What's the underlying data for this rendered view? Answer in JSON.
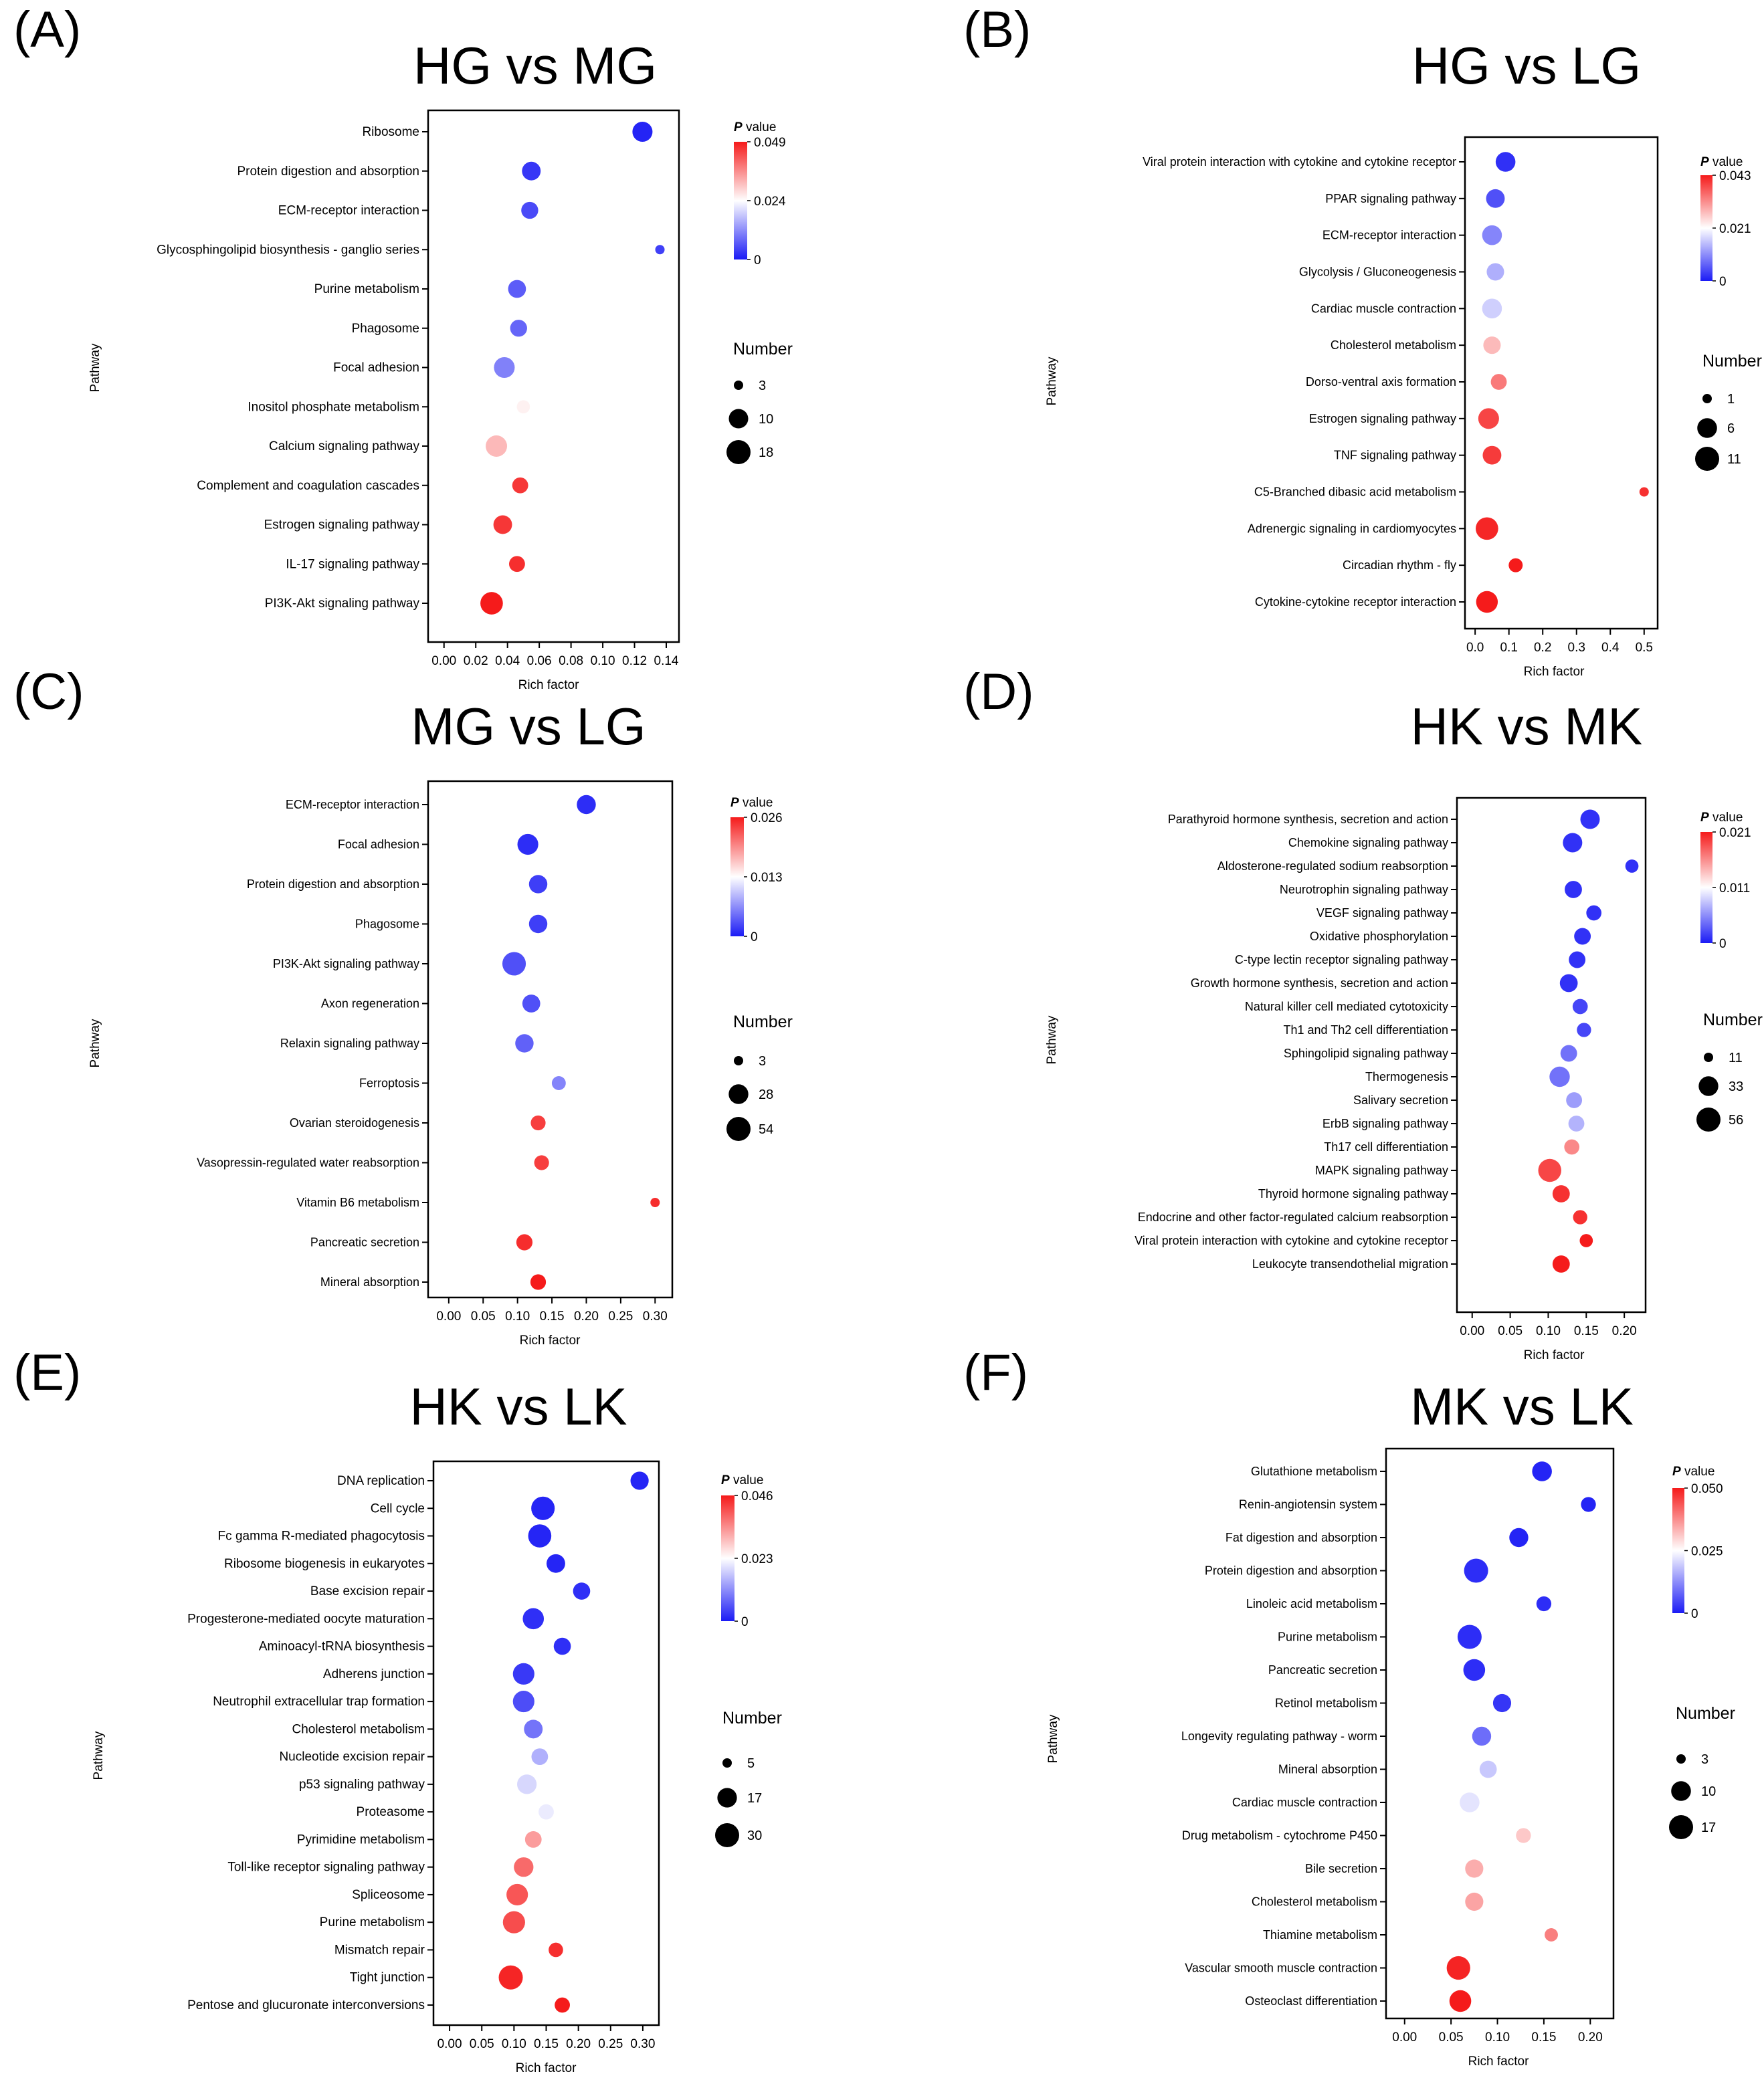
{
  "charts": [
    {
      "panel": "(A)",
      "title": "HG vs MG",
      "type": "scatter",
      "xlabel": "Rich factor",
      "ylabel": "Pathway",
      "xlim": [
        -0.01,
        0.148
      ],
      "xticks": [
        0.0,
        0.02,
        0.04,
        0.06,
        0.08,
        0.1,
        0.12,
        0.14
      ],
      "tick_labels": [
        "0.00",
        "0.02",
        "0.04",
        "0.06",
        "0.08",
        "0.10",
        "0.12",
        "0.14"
      ],
      "pvalue_legend": {
        "title_italic": "P",
        "title_rest": " value",
        "labels": [
          "0.049",
          "0.024",
          "0"
        ],
        "max": 0.049
      },
      "number_legend": {
        "title": "Number",
        "values": [
          3,
          10,
          18
        ],
        "labels": [
          "3",
          "10",
          "18"
        ]
      },
      "serif": true,
      "pathways": [
        "Ribosome",
        "Protein digestion and absorption",
        "ECM-receptor interaction",
        "Glycosphingolipid biosynthesis - ganglio series",
        "Purine metabolism",
        "Phagosome",
        "Focal adhesion",
        "Inositol phosphate metabolism",
        "Calcium signaling pathway",
        "Complement and coagulation cascades",
        "Estrogen signaling pathway",
        "IL-17 signaling pathway",
        "PI3K-Akt signaling pathway"
      ],
      "rich_factor": [
        0.125,
        0.055,
        0.054,
        0.136,
        0.046,
        0.047,
        0.038,
        0.05,
        0.033,
        0.048,
        0.037,
        0.046,
        0.03
      ],
      "number": [
        11,
        9,
        7,
        3,
        8,
        7,
        12,
        4,
        13,
        6,
        9,
        6,
        15
      ],
      "pvalue": [
        0.001,
        0.003,
        0.005,
        0.004,
        0.007,
        0.008,
        0.011,
        0.026,
        0.032,
        0.046,
        0.046,
        0.047,
        0.049
      ]
    },
    {
      "panel": "(B)",
      "title": "HG vs LG",
      "type": "scatter",
      "xlabel": "Rich factor",
      "ylabel": "Pathway",
      "xlim": [
        -0.03,
        0.54
      ],
      "xticks": [
        0.0,
        0.1,
        0.2,
        0.3,
        0.4,
        0.5
      ],
      "tick_labels": [
        "0.0",
        "0.1",
        "0.2",
        "0.3",
        "0.4",
        "0.5"
      ],
      "pvalue_legend": {
        "title_italic": "P",
        "title_rest": " value",
        "labels": [
          "0.043",
          "0.021",
          "0"
        ],
        "max": 0.043
      },
      "number_legend": {
        "title": "Number",
        "values": [
          1,
          6,
          11
        ],
        "labels": [
          "1",
          "6",
          "11"
        ]
      },
      "serif": false,
      "pathways": [
        "Viral protein interaction with cytokine and cytokine receptor",
        "PPAR signaling pathway",
        "ECM-receptor interaction",
        "Glycolysis / Gluconeogenesis",
        "Cardiac muscle contraction",
        "Cholesterol metabolism",
        "Dorso-ventral axis formation",
        "Estrogen signaling pathway",
        "TNF signaling pathway",
        "C5-Branched dibasic acid metabolism",
        "Adrenergic signaling in cardiomyocytes",
        "Circadian rhythm - fly",
        "Cytokine-cytokine receptor interaction"
      ],
      "rich_factor": [
        0.09,
        0.06,
        0.05,
        0.06,
        0.05,
        0.05,
        0.07,
        0.04,
        0.05,
        0.5,
        0.035,
        0.12,
        0.035
      ],
      "number": [
        6,
        5,
        6,
        4,
        6,
        4,
        3,
        7,
        5,
        1,
        9,
        2,
        8
      ],
      "pvalue": [
        0.002,
        0.005,
        0.01,
        0.014,
        0.017,
        0.028,
        0.034,
        0.039,
        0.04,
        0.041,
        0.042,
        0.043,
        0.043
      ]
    },
    {
      "panel": "(C)",
      "title": "MG vs LG",
      "type": "scatter",
      "xlabel": "Rich factor",
      "ylabel": "Pathway",
      "xlim": [
        -0.03,
        0.325
      ],
      "xticks": [
        0.0,
        0.05,
        0.1,
        0.15,
        0.2,
        0.25,
        0.3
      ],
      "tick_labels": [
        "0.00",
        "0.05",
        "0.10",
        "0.15",
        "0.20",
        "0.25",
        "0.30"
      ],
      "pvalue_legend": {
        "title_italic": "P",
        "title_rest": " value",
        "labels": [
          "0.026",
          "0.013",
          "0"
        ],
        "max": 0.026
      },
      "number_legend": {
        "title": "Number",
        "values": [
          3,
          28,
          54
        ],
        "labels": [
          "3",
          "28",
          "54"
        ]
      },
      "serif": false,
      "pathways": [
        "ECM-receptor interaction",
        "Focal adhesion",
        "Protein digestion and absorption",
        "Phagosome",
        "PI3K-Akt signaling pathway",
        "Axon regeneration",
        "Relaxin signaling pathway",
        "Ferroptosis",
        "Ovarian steroidogenesis",
        "Vasopressin-regulated water reabsorption",
        "Vitamin B6 metabolism",
        "Pancreatic secretion",
        "Mineral absorption"
      ],
      "rich_factor": [
        0.2,
        0.115,
        0.13,
        0.13,
        0.095,
        0.12,
        0.11,
        0.16,
        0.13,
        0.135,
        0.3,
        0.11,
        0.13
      ],
      "number": [
        25,
        34,
        22,
        22,
        50,
        20,
        22,
        8,
        10,
        10,
        3,
        14,
        12
      ],
      "pvalue": [
        0.001,
        0.001,
        0.002,
        0.002,
        0.003,
        0.003,
        0.004,
        0.006,
        0.024,
        0.024,
        0.025,
        0.025,
        0.026
      ]
    },
    {
      "panel": "(D)",
      "title": "HK vs MK",
      "type": "scatter",
      "xlabel": "Rich factor",
      "ylabel": "Pathway",
      "xlim": [
        -0.02,
        0.228
      ],
      "xticks": [
        0.0,
        0.05,
        0.1,
        0.15,
        0.2
      ],
      "tick_labels": [
        "0.00",
        "0.05",
        "0.10",
        "0.15",
        "0.20"
      ],
      "pvalue_legend": {
        "title_italic": "P",
        "title_rest": " value",
        "labels": [
          "0.021",
          "0.011",
          "0"
        ],
        "max": 0.021
      },
      "number_legend": {
        "title": "Number",
        "values": [
          11,
          33,
          56
        ],
        "labels": [
          "11",
          "33",
          "56"
        ]
      },
      "serif": false,
      "pathways": [
        "Parathyroid hormone synthesis, secretion and action",
        "Chemokine signaling pathway",
        "Aldosterone-regulated sodium reabsorption",
        "Neurotrophin signaling pathway",
        "VEGF signaling pathway",
        "Oxidative phosphorylation",
        "C-type lectin receptor signaling pathway",
        "Growth hormone synthesis, secretion and action",
        "Natural killer cell mediated cytotoxicity",
        "Th1 and Th2 cell differentiation",
        "Sphingolipid signaling pathway",
        "Thermogenesis",
        "Salivary secretion",
        "ErbB signaling pathway",
        "Th17 cell differentiation",
        "MAPK signaling pathway",
        "Thyroid hormone signaling pathway",
        "Endocrine and other factor-regulated calcium reabsorption",
        "Viral protein interaction with cytokine and cytokine receptor",
        "Leukocyte transendothelial migration"
      ],
      "rich_factor": [
        0.155,
        0.132,
        0.21,
        0.133,
        0.16,
        0.145,
        0.138,
        0.127,
        0.142,
        0.147,
        0.127,
        0.115,
        0.134,
        0.137,
        0.131,
        0.102,
        0.117,
        0.142,
        0.15,
        0.117
      ],
      "number": [
        32,
        32,
        14,
        24,
        18,
        22,
        22,
        26,
        18,
        16,
        22,
        36,
        20,
        20,
        18,
        50,
        24,
        16,
        14,
        24
      ],
      "pvalue": [
        0.001,
        0.001,
        0.001,
        0.001,
        0.001,
        0.001,
        0.001,
        0.001,
        0.002,
        0.002,
        0.004,
        0.004,
        0.006,
        0.007,
        0.016,
        0.019,
        0.02,
        0.02,
        0.021,
        0.021
      ]
    },
    {
      "panel": "(E)",
      "title": "HK vs LK",
      "type": "scatter",
      "xlabel": "Rich factor",
      "ylabel": "Pathway",
      "xlim": [
        -0.025,
        0.325
      ],
      "xticks": [
        0.0,
        0.05,
        0.1,
        0.15,
        0.2,
        0.25,
        0.3
      ],
      "tick_labels": [
        "0.00",
        "0.05",
        "0.10",
        "0.15",
        "0.20",
        "0.25",
        "0.30"
      ],
      "pvalue_legend": {
        "title_italic": "P",
        "title_rest": " value",
        "labels": [
          "0.046",
          "0.023",
          "0"
        ],
        "max": 0.046
      },
      "number_legend": {
        "title": "Number",
        "values": [
          5,
          17,
          30
        ],
        "labels": [
          "5",
          "17",
          "30"
        ]
      },
      "serif": true,
      "pathways": [
        "DNA replication",
        "Cell cycle",
        "Fc gamma R-mediated phagocytosis",
        "Ribosome biogenesis in eukaryotes",
        "Base excision repair",
        "Progesterone-mediated oocyte maturation",
        "Aminoacyl-tRNA biosynthesis",
        "Adherens junction",
        "Neutrophil extracellular trap formation",
        "Cholesterol metabolism",
        "Nucleotide excision repair",
        "p53 signaling pathway",
        "Proteasome",
        "Pyrimidine metabolism",
        "Toll-like receptor signaling pathway",
        "Spliceosome",
        "Purine metabolism",
        "Mismatch repair",
        "Tight junction",
        "Pentose and glucuronate interconversions"
      ],
      "rich_factor": [
        0.295,
        0.145,
        0.14,
        0.165,
        0.205,
        0.13,
        0.175,
        0.115,
        0.115,
        0.13,
        0.14,
        0.12,
        0.15,
        0.13,
        0.115,
        0.105,
        0.1,
        0.165,
        0.095,
        0.175
      ],
      "number": [
        14,
        28,
        27,
        15,
        12,
        21,
        12,
        22,
        22,
        15,
        11,
        17,
        9,
        11,
        17,
        22,
        24,
        8,
        30,
        9
      ],
      "pvalue": [
        0.001,
        0.001,
        0.001,
        0.001,
        0.002,
        0.002,
        0.002,
        0.003,
        0.005,
        0.009,
        0.015,
        0.019,
        0.021,
        0.033,
        0.038,
        0.04,
        0.041,
        0.044,
        0.045,
        0.046
      ]
    },
    {
      "panel": "(F)",
      "title": "MK vs LK",
      "type": "scatter",
      "xlabel": "Rich factor",
      "ylabel": "Pathway",
      "xlim": [
        -0.02,
        0.225
      ],
      "xticks": [
        0.0,
        0.05,
        0.1,
        0.15,
        0.2
      ],
      "tick_labels": [
        "0.00",
        "0.05",
        "0.10",
        "0.15",
        "0.20"
      ],
      "pvalue_legend": {
        "title_italic": "P",
        "title_rest": " value",
        "labels": [
          "0.050",
          "0.025",
          "0"
        ],
        "max": 0.05
      },
      "number_legend": {
        "title": "Number",
        "values": [
          3,
          10,
          17
        ],
        "labels": [
          "3",
          "10",
          "17"
        ]
      },
      "serif": false,
      "pathways": [
        "Glutathione metabolism",
        "Renin-angiotensin system",
        "Fat digestion and absorption",
        "Protein digestion and absorption",
        "Linoleic acid metabolism",
        "Purine metabolism",
        "Pancreatic secretion",
        "Retinol metabolism",
        "Longevity regulating pathway - worm",
        "Mineral absorption",
        "Cardiac muscle contraction",
        "Drug metabolism - cytochrome P450",
        "Bile secretion",
        "Cholesterol metabolism",
        "Thiamine metabolism",
        "Vascular smooth muscle contraction",
        "Osteoclast differentiation"
      ],
      "rich_factor": [
        0.148,
        0.198,
        0.123,
        0.077,
        0.15,
        0.07,
        0.075,
        0.105,
        0.083,
        0.09,
        0.07,
        0.128,
        0.075,
        0.075,
        0.158,
        0.058,
        0.06
      ],
      "number": [
        10,
        5,
        9,
        17,
        5,
        17,
        13,
        8,
        9,
        7,
        10,
        5,
        8,
        8,
        4,
        16,
        13
      ],
      "pvalue": [
        0.001,
        0.001,
        0.001,
        0.002,
        0.002,
        0.002,
        0.002,
        0.003,
        0.009,
        0.019,
        0.022,
        0.031,
        0.034,
        0.035,
        0.039,
        0.049,
        0.05
      ]
    }
  ],
  "colors": {
    "low": "#1b1bf5",
    "mid": "#ffffff",
    "high": "#f51b1b"
  }
}
